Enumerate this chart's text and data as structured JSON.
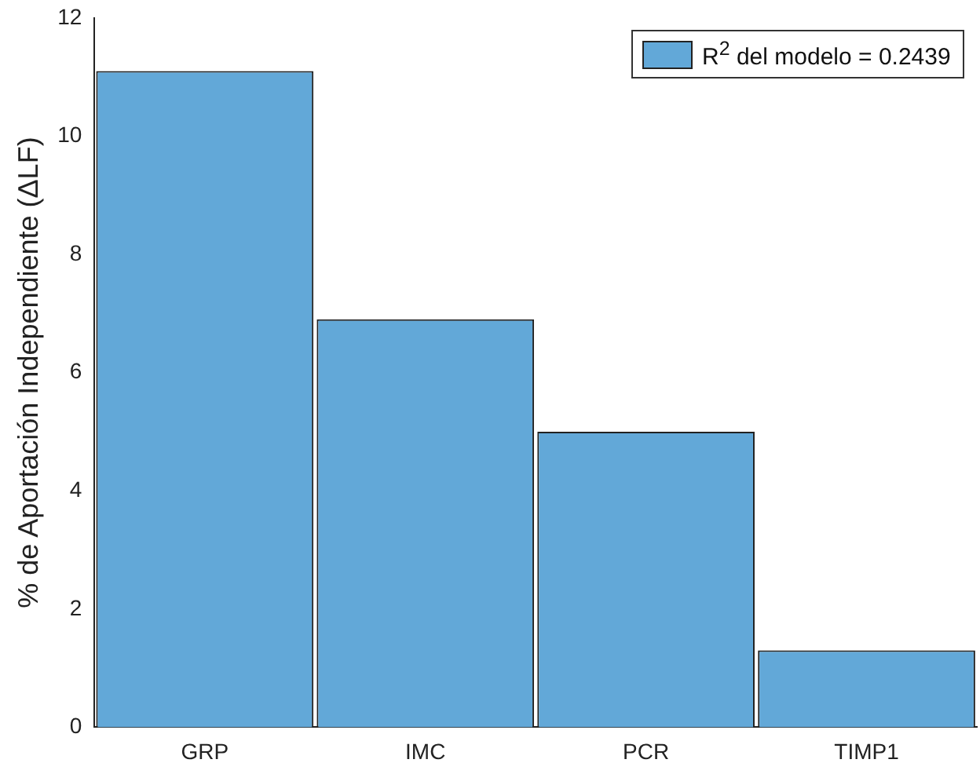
{
  "chart_data": {
    "type": "bar",
    "ylabel": "% de Aportación Independiente (ΔLF)",
    "categories": [
      "GRP",
      "IMC",
      "PCR",
      "TIMP1"
    ],
    "series": [
      {
        "name": "R$^{2}$ del modelo = 0.2439",
        "color": "#62a8d8",
        "values": [
          11.1,
          6.9,
          5.0,
          1.3
        ]
      }
    ],
    "ylim": [
      0,
      12
    ],
    "yticks": [
      0,
      2,
      4,
      6,
      8,
      10,
      12
    ],
    "grid": false,
    "legend": "top right"
  }
}
